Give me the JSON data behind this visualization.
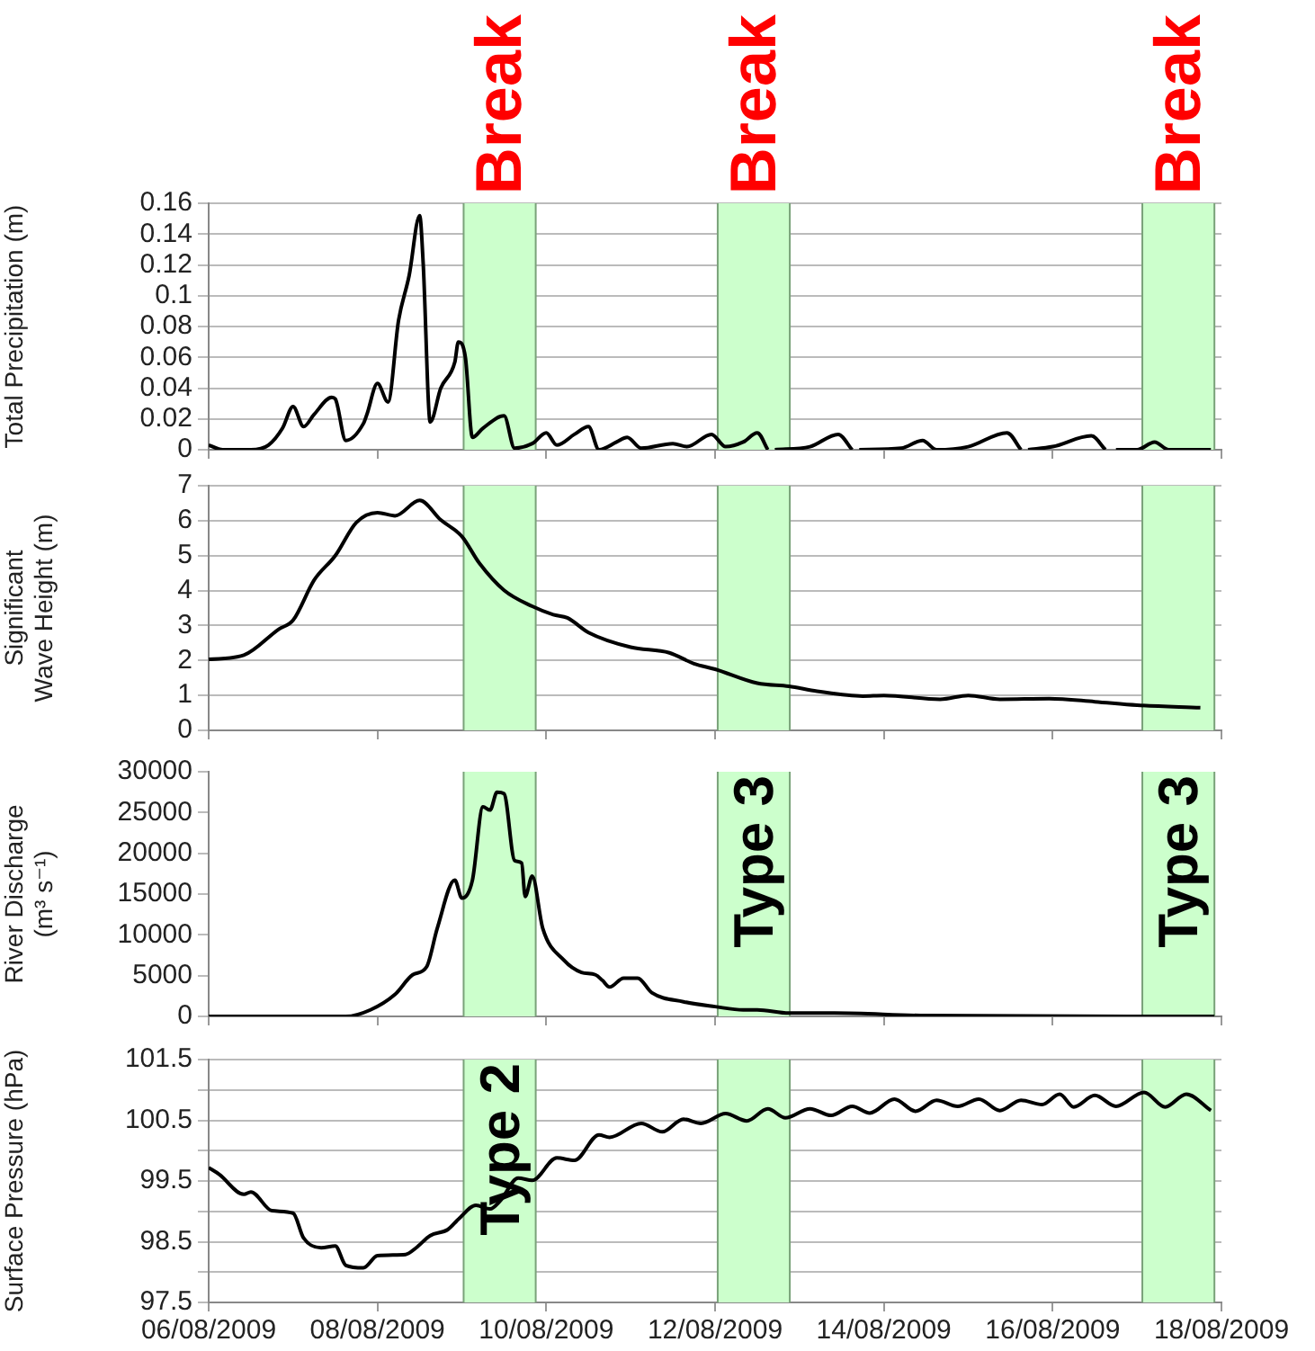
{
  "chart_data": [
    {
      "type": "line",
      "ylabel": "Total Precipitation (m)",
      "marker": "none",
      "grid": "y",
      "tick_labels": "y",
      "xlim": [
        "2009-08-06",
        "2009-08-18"
      ],
      "xticks": [
        {
          "value": "2009-08-06",
          "label": null
        },
        {
          "value": "2009-08-08",
          "label": null
        },
        {
          "value": "2009-08-10",
          "label": null
        },
        {
          "value": "2009-08-12",
          "label": null
        },
        {
          "value": "2009-08-14",
          "label": null
        },
        {
          "value": "2009-08-16",
          "label": null
        },
        {
          "value": "2009-08-18",
          "label": null
        }
      ],
      "ylim": [
        0,
        0.16
      ],
      "yticks": [
        0,
        0.02,
        0.04,
        0.06,
        0.08,
        0.1,
        0.12,
        0.14,
        0.16
      ],
      "bands": [
        {
          "axis": "x",
          "from": "2009-08-09T00:30",
          "to": "2009-08-09T21:00",
          "label": "Break",
          "color": "#ccffcc"
        },
        {
          "axis": "x",
          "from": "2009-08-12T00:45",
          "to": "2009-08-12T21:15",
          "label": "Break",
          "color": "#ccffcc"
        },
        {
          "axis": "x",
          "from": "2009-08-17T01:30",
          "to": "2009-08-17T22:00",
          "label": "Break",
          "color": "#ccffcc"
        }
      ],
      "x": [
        "2009-08-06T00:00",
        "2009-08-06T04:00",
        "2009-08-06T12:00",
        "2009-08-06T17:00",
        "2009-08-06T21:00",
        "2009-08-07T00:00",
        "2009-08-07T03:00",
        "2009-08-07T06:00",
        "2009-08-07T11:00",
        "2009-08-07T12:00",
        "2009-08-07T15:00",
        "2009-08-07T20:00",
        "2009-08-07T21:00",
        "2009-08-08T00:00",
        "2009-08-08T03:00",
        "2009-08-08T06:00",
        "2009-08-08T09:00",
        "2009-08-08T12:00",
        "2009-08-08T13:00",
        "2009-08-08T15:00",
        "2009-08-08T18:00",
        "2009-08-08T22:00",
        "2009-08-08T23:00",
        "2009-08-09T01:00",
        "2009-08-09T03:00",
        "2009-08-09T06:00",
        "2009-08-09T12:00",
        "2009-08-09T15:00",
        "2009-08-09T20:00",
        "2009-08-10T00:00",
        "2009-08-10T03:00",
        "2009-08-10T08:00",
        "2009-08-10T12:00",
        "2009-08-10T15:00",
        "2009-08-10T20:00",
        "2009-08-10T23:00",
        "2009-08-11T03:00",
        "2009-08-11T12:00",
        "2009-08-11T16:00",
        "2009-08-11T23:00",
        "2009-08-12T03:00",
        "2009-08-12T08:00",
        "2009-08-12T12:00",
        "2009-08-12T15:00",
        "2009-08-12T16:00",
        "2009-08-12T17:00",
        "2009-08-13T03:00",
        "2009-08-13T11:00",
        "2009-08-13T15:00",
        "2009-08-13T16:00",
        "2009-08-13T17:00",
        "2009-08-14T05:00",
        "2009-08-14T11:00",
        "2009-08-14T15:00",
        "2009-08-15T00:00",
        "2009-08-15T11:00",
        "2009-08-15T15:00",
        "2009-08-15T16:00",
        "2009-08-15T17:00",
        "2009-08-16T00:00",
        "2009-08-16T11:00",
        "2009-08-16T15:00",
        "2009-08-16T17:00",
        "2009-08-16T18:00",
        "2009-08-17T00:00",
        "2009-08-17T05:00",
        "2009-08-17T09:00",
        "2009-08-17T21:00"
      ],
      "series": [
        {
          "color": "#000000",
          "values": [
            0.003,
            0,
            0,
            0.003,
            0.014,
            0.028,
            0.015,
            0.023,
            0.034,
            0.033,
            0.006,
            0.017,
            0.023,
            0.043,
            0.031,
            0.084,
            0.113,
            0.152,
            0.121,
            0.018,
            0.04,
            0.057,
            0.07,
            0.06,
            0.008,
            0.014,
            0.022,
            0.001,
            0.004,
            0.011,
            0.003,
            0.01,
            0.015,
            0,
            0.005,
            0.008,
            0.001,
            0.004,
            0.002,
            0.01,
            0.002,
            0.005,
            0.011,
            0,
            null,
            0,
            0.002,
            0.01,
            0,
            null,
            0,
            0.001,
            0.006,
            0,
            0.002,
            0.011,
            0,
            null,
            0,
            0.002,
            0.009,
            0,
            null,
            0,
            0,
            0.005,
            0,
            0
          ]
        }
      ]
    },
    {
      "type": "line",
      "ylabel": "Significant Wave Height (m)",
      "marker": "none",
      "grid": "y",
      "tick_labels": "y",
      "xlim": [
        "2009-08-06",
        "2009-08-18"
      ],
      "xticks": [
        {
          "value": "2009-08-06",
          "label": null
        },
        {
          "value": "2009-08-08",
          "label": null
        },
        {
          "value": "2009-08-10",
          "label": null
        },
        {
          "value": "2009-08-12",
          "label": null
        },
        {
          "value": "2009-08-14",
          "label": null
        },
        {
          "value": "2009-08-16",
          "label": null
        },
        {
          "value": "2009-08-18",
          "label": null
        }
      ],
      "ylim": [
        0,
        7
      ],
      "yticks": [
        0,
        1,
        2,
        3,
        4,
        5,
        6,
        7
      ],
      "bands": [
        {
          "axis": "x",
          "from": "2009-08-09T00:30",
          "to": "2009-08-09T21:00",
          "color": "#ccffcc"
        },
        {
          "axis": "x",
          "from": "2009-08-12T00:45",
          "to": "2009-08-12T21:15",
          "color": "#ccffcc"
        },
        {
          "axis": "x",
          "from": "2009-08-17T01:30",
          "to": "2009-08-17T22:00",
          "color": "#ccffcc"
        }
      ],
      "x": [
        "2009-08-06T00:00",
        "2009-08-06T10:00",
        "2009-08-06T20:00",
        "2009-08-07T00:00",
        "2009-08-07T06:00",
        "2009-08-07T12:00",
        "2009-08-07T18:00",
        "2009-08-08T00:00",
        "2009-08-08T05:00",
        "2009-08-08T12:00",
        "2009-08-08T18:00",
        "2009-08-09T00:00",
        "2009-08-09T05:00",
        "2009-08-09T12:00",
        "2009-08-09T20:00",
        "2009-08-10T02:00",
        "2009-08-10T06:00",
        "2009-08-10T12:00",
        "2009-08-11T00:00",
        "2009-08-11T11:00",
        "2009-08-11T18:00",
        "2009-08-12T00:00",
        "2009-08-12T12:00",
        "2009-08-12T21:00",
        "2009-08-13T05:00",
        "2009-08-13T18:00",
        "2009-08-14T00:00",
        "2009-08-14T16:00",
        "2009-08-15T00:00",
        "2009-08-15T09:00",
        "2009-08-15T23:00",
        "2009-08-16T12:00",
        "2009-08-17T00:00",
        "2009-08-17T18:00"
      ],
      "series": [
        {
          "color": "#000000",
          "values": [
            2.03,
            2.15,
            2.9,
            3.15,
            4.3,
            5.0,
            5.95,
            6.23,
            6.14,
            6.58,
            6.02,
            5.55,
            4.78,
            4.01,
            3.55,
            3.31,
            3.22,
            2.8,
            2.38,
            2.22,
            1.91,
            1.75,
            1.35,
            1.26,
            1.12,
            0.98,
            1.0,
            0.89,
            1.0,
            0.89,
            0.91,
            0.82,
            0.72,
            0.65
          ]
        }
      ]
    },
    {
      "type": "line",
      "ylabel": "River Discharge (m³ s⁻¹)",
      "marker": "none",
      "tick_labels": "y",
      "xlim": [
        "2009-08-06",
        "2009-08-18"
      ],
      "xticks": [
        {
          "value": "2009-08-06",
          "label": null
        },
        {
          "value": "2009-08-08",
          "label": null
        },
        {
          "value": "2009-08-10",
          "label": null
        },
        {
          "value": "2009-08-12",
          "label": null
        },
        {
          "value": "2009-08-14",
          "label": null
        },
        {
          "value": "2009-08-16",
          "label": null
        },
        {
          "value": "2009-08-18",
          "label": null
        }
      ],
      "ylim": [
        0,
        30000
      ],
      "yticks": [
        0,
        5000,
        10000,
        15000,
        20000,
        25000,
        30000
      ],
      "bands": [
        {
          "axis": "x",
          "from": "2009-08-09T00:30",
          "to": "2009-08-09T21:00",
          "color": "#ccffcc"
        },
        {
          "axis": "x",
          "from": "2009-08-12T00:45",
          "to": "2009-08-12T21:15",
          "label": "Type 3",
          "color": "#ccffcc"
        },
        {
          "axis": "x",
          "from": "2009-08-17T01:30",
          "to": "2009-08-17T22:00",
          "label": "Type 3",
          "color": "#ccffcc"
        }
      ],
      "x": [
        "2009-08-06T00:00",
        "2009-08-07T15:00",
        "2009-08-07T22:00",
        "2009-08-08T05:00",
        "2009-08-08T10:00",
        "2009-08-08T14:00",
        "2009-08-08T17:00",
        "2009-08-08T22:00",
        "2009-08-09T00:00",
        "2009-08-09T03:00",
        "2009-08-09T06:00",
        "2009-08-09T08:00",
        "2009-08-09T10:00",
        "2009-08-09T12:00",
        "2009-08-09T15:00",
        "2009-08-09T17:00",
        "2009-08-09T18:00",
        "2009-08-09T20:00",
        "2009-08-09T23:00",
        "2009-08-10T05:00",
        "2009-08-10T10:00",
        "2009-08-10T14:00",
        "2009-08-10T16:00",
        "2009-08-10T18:00",
        "2009-08-10T22:00",
        "2009-08-11T02:00",
        "2009-08-11T06:00",
        "2009-08-11T15:00",
        "2009-08-12T00:00",
        "2009-08-12T08:00",
        "2009-08-12T12:00",
        "2009-08-12T21:00",
        "2009-08-13T10:00",
        "2009-08-14T12:00",
        "2009-08-17T22:00"
      ],
      "series": [
        {
          "color": "#000000",
          "values": [
            0,
            0,
            800,
            2700,
            5100,
            6100,
            10800,
            16700,
            14500,
            16700,
            25700,
            25300,
            27500,
            27300,
            19100,
            18800,
            14700,
            17200,
            10800,
            6900,
            5400,
            5100,
            4400,
            3600,
            4700,
            4700,
            2900,
            1800,
            1200,
            800,
            800,
            400,
            400,
            100,
            0
          ]
        }
      ]
    },
    {
      "type": "line",
      "ylabel": "Surface Pressure (hPa)",
      "marker": "none",
      "grid": "y",
      "xlim": [
        "2009-08-06",
        "2009-08-18"
      ],
      "xticks": [
        {
          "value": "2009-08-06",
          "label": "06/08/2009"
        },
        {
          "value": "2009-08-08",
          "label": "08/08/2009"
        },
        {
          "value": "2009-08-10",
          "label": "10/08/2009"
        },
        {
          "value": "2009-08-12",
          "label": "12/08/2009"
        },
        {
          "value": "2009-08-14",
          "label": "14/08/2009"
        },
        {
          "value": "2009-08-16",
          "label": "16/08/2009"
        },
        {
          "value": "2009-08-18",
          "label": "18/08/2009"
        }
      ],
      "ylim": [
        97.5,
        101.5
      ],
      "yticks": [
        97.5,
        {
          "value": 98,
          "label": null
        },
        98.5,
        {
          "value": 99,
          "label": null
        },
        99.5,
        {
          "value": 100,
          "label": null
        },
        100.5,
        {
          "value": 101,
          "label": null
        },
        101.5
      ],
      "bands": [
        {
          "axis": "x",
          "from": "2009-08-09T00:30",
          "to": "2009-08-09T21:00",
          "label": "Type 2",
          "color": "#ccffcc"
        },
        {
          "axis": "x",
          "from": "2009-08-12T00:45",
          "to": "2009-08-12T21:15",
          "color": "#ccffcc"
        },
        {
          "axis": "x",
          "from": "2009-08-17T01:30",
          "to": "2009-08-17T22:00",
          "color": "#ccffcc"
        }
      ],
      "x": [
        "2009-08-06T00:00",
        "2009-08-06T03:00",
        "2009-08-06T10:00",
        "2009-08-06T12:00",
        "2009-08-06T18:00",
        "2009-08-07T00:00",
        "2009-08-07T03:00",
        "2009-08-07T08:00",
        "2009-08-07T12:00",
        "2009-08-07T15:00",
        "2009-08-07T20:00",
        "2009-08-08T00:00",
        "2009-08-08T08:00",
        "2009-08-08T11:00",
        "2009-08-08T15:00",
        "2009-08-08T20:00",
        "2009-08-08T23:00",
        "2009-08-09T04:00",
        "2009-08-09T08:00",
        "2009-08-09T11:00",
        "2009-08-09T16:00",
        "2009-08-09T20:00",
        "2009-08-10T03:00",
        "2009-08-10T08:00",
        "2009-08-10T15:00",
        "2009-08-10T18:00",
        "2009-08-11T03:00",
        "2009-08-11T09:00",
        "2009-08-11T15:00",
        "2009-08-11T20:00",
        "2009-08-12T03:00",
        "2009-08-12T09:00",
        "2009-08-12T15:00",
        "2009-08-12T20:00",
        "2009-08-13T03:00",
        "2009-08-13T09:00",
        "2009-08-13T15:00",
        "2009-08-13T20:00",
        "2009-08-14T03:00",
        "2009-08-14T09:00",
        "2009-08-14T15:00",
        "2009-08-14T21:00",
        "2009-08-15T03:00",
        "2009-08-15T09:00",
        "2009-08-15T15:00",
        "2009-08-15T21:00",
        "2009-08-16T02:00",
        "2009-08-16T06:00",
        "2009-08-16T12:00",
        "2009-08-16T18:00",
        "2009-08-17T02:00",
        "2009-08-17T08:00",
        "2009-08-17T14:00",
        "2009-08-17T21:00"
      ],
      "series": [
        {
          "color": "#000000",
          "values": [
            99.72,
            99.61,
            99.28,
            99.32,
            99.01,
            98.97,
            98.56,
            98.4,
            98.43,
            98.11,
            98.07,
            98.27,
            98.29,
            98.4,
            98.6,
            98.7,
            98.87,
            99.1,
            99.04,
            99.18,
            99.55,
            99.51,
            99.88,
            99.84,
            100.26,
            100.22,
            100.45,
            100.31,
            100.52,
            100.45,
            100.61,
            100.49,
            100.69,
            100.54,
            100.69,
            100.58,
            100.73,
            100.62,
            100.85,
            100.65,
            100.83,
            100.73,
            100.85,
            100.66,
            100.83,
            100.76,
            100.93,
            100.72,
            100.91,
            100.73,
            100.96,
            100.72,
            100.93,
            100.66
          ]
        }
      ]
    }
  ]
}
